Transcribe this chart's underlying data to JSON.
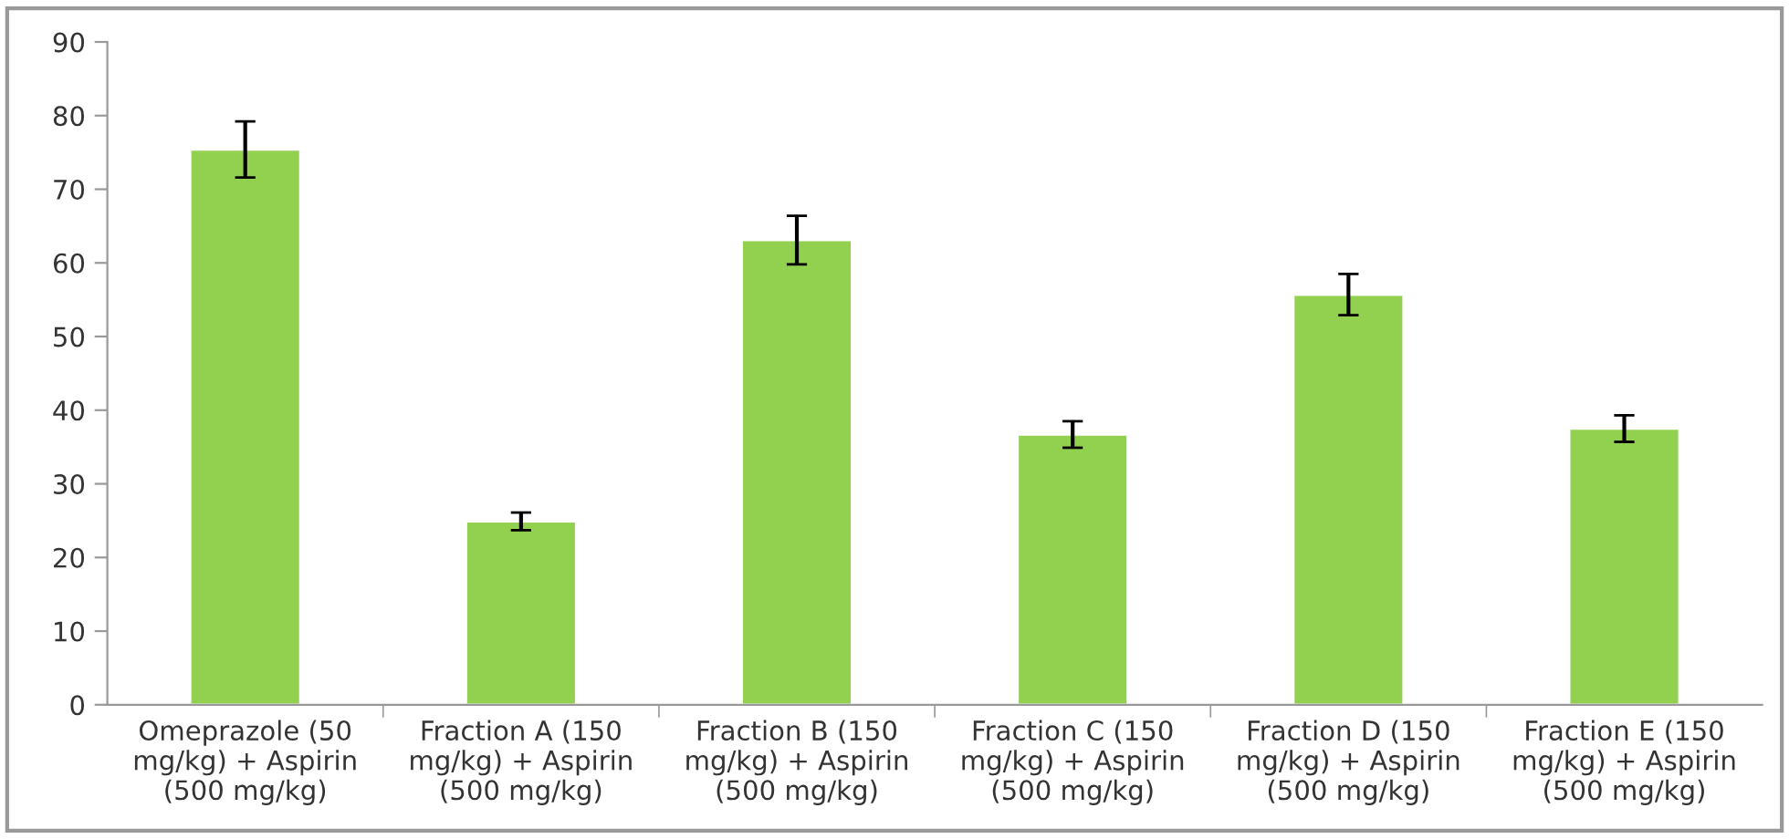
{
  "chart_data": {
    "type": "bar",
    "categories": [
      "Omeprazole (50 mg/kg) + Aspirin (500 mg/kg)",
      "Fraction A (150 mg/kg) + Aspirin (500 mg/kg)",
      "Fraction B (150 mg/kg) + Aspirin (500 mg/kg)",
      "Fraction C (150 mg/kg) + Aspirin (500 mg/kg)",
      "Fraction D (150 mg/kg) + Aspirin (500 mg/kg)",
      "Fraction E (150 mg/kg) + Aspirin (500 mg/kg)"
    ],
    "values": [
      75.4,
      24.9,
      63.1,
      36.7,
      55.7,
      37.5
    ],
    "errors": [
      3.8,
      1.2,
      3.3,
      1.8,
      2.8,
      1.8
    ],
    "color": "#92d050",
    "ylim": [
      0,
      90
    ],
    "yticks": [
      0,
      10,
      20,
      30,
      40,
      50,
      60,
      70,
      80,
      90
    ],
    "grid": false,
    "legend": false
  }
}
